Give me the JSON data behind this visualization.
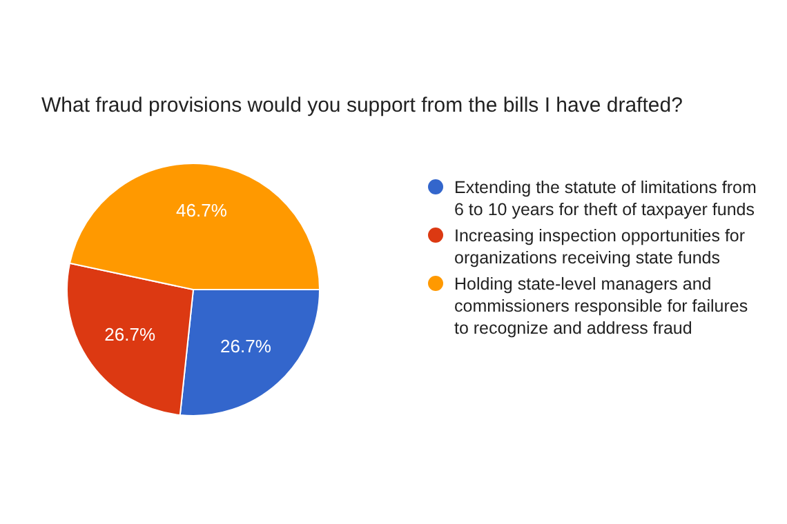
{
  "chart_data": {
    "type": "pie",
    "title": "What fraud provisions would you support from the bills I have drafted?",
    "categories": [
      "Extending the statute of limitations from 6 to 10 years for theft of taxpayer funds",
      "Increasing inspection opportunities for organizations receiving state funds",
      "Holding state-level managers and commissioners responsible for failures to recognize and address fraud"
    ],
    "values": [
      26.7,
      26.7,
      46.7
    ],
    "value_labels": [
      "26.7%",
      "26.7%",
      "46.7%"
    ],
    "colors": [
      "#3366cc",
      "#dc3912",
      "#ff9900"
    ],
    "legend": "right"
  }
}
